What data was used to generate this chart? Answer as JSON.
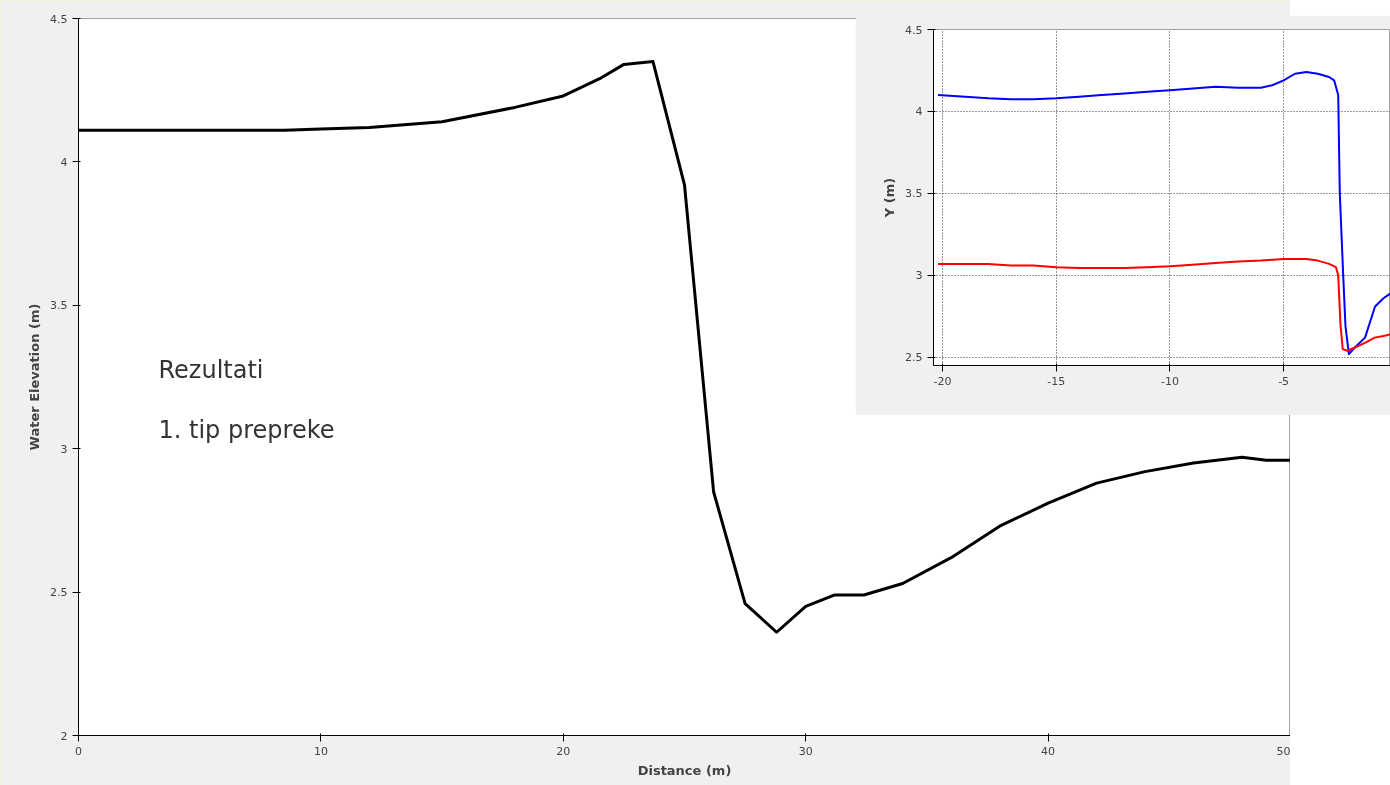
{
  "chart_data": [
    {
      "type": "line",
      "xlabel": "Distance (m)",
      "ylabel": "Water Elevation (m)",
      "annotations": [
        "Rezultati",
        "1. tip prepreke"
      ],
      "xlim": [
        0,
        50
      ],
      "xticks": [
        0,
        10,
        20,
        30,
        40,
        50
      ],
      "ylim": [
        2,
        4.5
      ],
      "yticks": [
        2,
        2.5,
        3,
        3.5,
        4,
        4.5
      ],
      "grid": false,
      "series": [
        {
          "color": "#000000",
          "x": [
            0,
            8.5,
            10,
            12,
            15,
            18,
            20,
            21.5,
            22.5,
            23.7,
            25,
            26.2,
            27.5,
            28.8,
            30,
            31.2,
            32.4,
            34,
            36,
            38,
            40,
            42,
            44,
            46,
            48,
            49,
            50
          ],
          "values": [
            4.11,
            4.11,
            4.115,
            4.12,
            4.14,
            4.19,
            4.23,
            4.29,
            4.34,
            4.35,
            3.92,
            2.85,
            2.46,
            2.36,
            2.45,
            2.49,
            2.49,
            2.53,
            2.62,
            2.73,
            2.81,
            2.88,
            2.92,
            2.95,
            2.97,
            2.96,
            2.96
          ]
        }
      ]
    },
    {
      "type": "line",
      "ylabel": "Y (m)",
      "xlim": [
        -20.4,
        -0.3
      ],
      "xticks": [
        -20,
        -15,
        -10,
        -5
      ],
      "ylim": [
        2.45,
        4.5
      ],
      "yticks": [
        2.5,
        3,
        3.5,
        4,
        4.5
      ],
      "grid": true,
      "series": [
        {
          "color": "#0000ff",
          "x": [
            -20.2,
            -19,
            -18,
            -17,
            -16,
            -15,
            -14,
            -13,
            -12,
            -11,
            -10,
            -9,
            -8,
            -7,
            -6,
            -5.5,
            -5,
            -4.5,
            -4,
            -3.5,
            -3,
            -2.78,
            -2.6,
            -2.53,
            -2.38,
            -2.28,
            -2.13,
            -1.87,
            -1.42,
            -0.98,
            -0.61,
            -0.3
          ],
          "values": [
            4.1,
            4.09,
            4.08,
            4.075,
            4.075,
            4.08,
            4.09,
            4.1,
            4.11,
            4.12,
            4.13,
            4.14,
            4.15,
            4.145,
            4.145,
            4.16,
            4.19,
            4.23,
            4.24,
            4.23,
            4.21,
            4.19,
            4.1,
            3.5,
            3.0,
            2.69,
            2.52,
            2.56,
            2.62,
            2.81,
            2.86,
            2.89
          ]
        },
        {
          "color": "#ff0000",
          "x": [
            -20.2,
            -18,
            -17,
            -16,
            -15,
            -14,
            -12,
            -11,
            -10,
            -9,
            -8,
            -7,
            -6,
            -5,
            -4,
            -3.5,
            -3,
            -2.7,
            -2.6,
            -2.5,
            -2.4,
            -2.2,
            -1.87,
            -1.4,
            -1,
            -0.61,
            -0.3
          ],
          "values": [
            3.07,
            3.07,
            3.06,
            3.06,
            3.05,
            3.045,
            3.045,
            3.05,
            3.055,
            3.065,
            3.075,
            3.085,
            3.09,
            3.1,
            3.1,
            3.09,
            3.07,
            3.05,
            3.0,
            2.7,
            2.55,
            2.54,
            2.56,
            2.59,
            2.62,
            2.63,
            2.64
          ]
        }
      ]
    }
  ]
}
